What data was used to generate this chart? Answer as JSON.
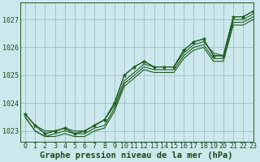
{
  "title": "Graphe pression niveau de la mer (hPa)",
  "background_color": "#cce8ec",
  "grid_color": "#9bbfc4",
  "line_color": "#1e5e1e",
  "text_color": "#1a4a1a",
  "xlim": [
    -0.5,
    23
  ],
  "ylim": [
    1022.6,
    1027.6
  ],
  "yticks": [
    1023,
    1024,
    1025,
    1026,
    1027
  ],
  "xticks": [
    0,
    1,
    2,
    3,
    4,
    5,
    6,
    7,
    8,
    9,
    10,
    11,
    12,
    13,
    14,
    15,
    16,
    17,
    18,
    19,
    20,
    21,
    22,
    23
  ],
  "series": [
    [
      1023.6,
      1023.2,
      1022.9,
      1023.0,
      1023.1,
      1022.9,
      1023.0,
      1023.2,
      1023.4,
      1024.0,
      1025.0,
      1025.3,
      1025.5,
      1025.3,
      1025.3,
      1025.3,
      1025.9,
      1026.2,
      1026.3,
      1025.7,
      1025.7,
      1027.1,
      1027.1,
      1027.3
    ],
    [
      1023.6,
      1023.2,
      1023.0,
      1023.0,
      1023.1,
      1023.0,
      1023.0,
      1023.2,
      1023.4,
      1023.9,
      1024.8,
      1025.1,
      1025.4,
      1025.3,
      1025.3,
      1025.3,
      1025.8,
      1026.1,
      1026.2,
      1025.8,
      1025.7,
      1027.0,
      1027.0,
      1027.2
    ],
    [
      1023.5,
      1023.0,
      1022.8,
      1022.9,
      1023.0,
      1022.9,
      1022.9,
      1023.1,
      1023.2,
      1023.8,
      1024.7,
      1025.0,
      1025.3,
      1025.2,
      1025.2,
      1025.2,
      1025.7,
      1026.0,
      1026.1,
      1025.6,
      1025.6,
      1026.9,
      1026.9,
      1027.1
    ],
    [
      1023.5,
      1023.0,
      1022.8,
      1022.8,
      1022.9,
      1022.8,
      1022.8,
      1023.0,
      1023.1,
      1023.7,
      1024.6,
      1024.9,
      1025.2,
      1025.1,
      1025.1,
      1025.1,
      1025.6,
      1025.9,
      1026.0,
      1025.5,
      1025.5,
      1026.8,
      1026.8,
      1027.0
    ]
  ],
  "title_fontsize": 7.5,
  "tick_fontsize": 6.0,
  "marker_size": 3.5
}
